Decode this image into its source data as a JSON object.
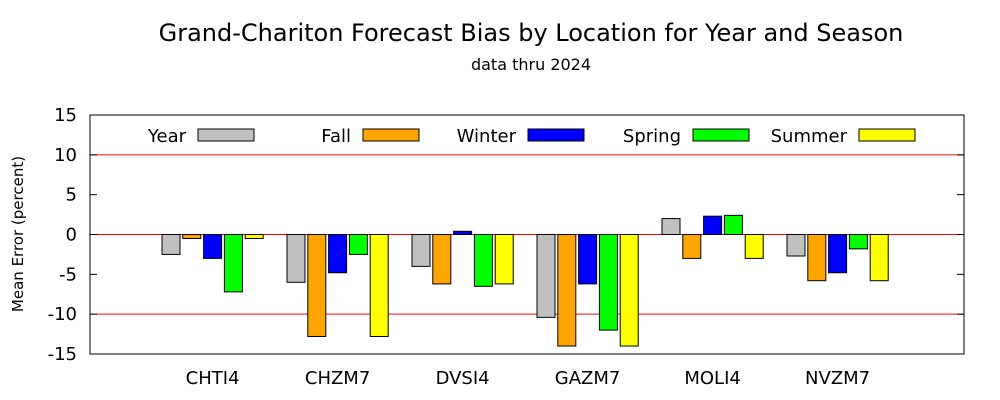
{
  "chart_data": {
    "type": "bar",
    "title": "Grand-Chariton Forecast Bias by Location for Year and Season",
    "subtitle": "data thru 2024",
    "xlabel": "",
    "ylabel": "Mean Error (percent)",
    "ylim": [
      -15,
      15
    ],
    "yticks": [
      15,
      10,
      5,
      0,
      -5,
      -10,
      -15
    ],
    "gridlines": [
      10,
      0,
      -10
    ],
    "grid_color": "#ff0000",
    "legend_position": "top",
    "categories": [
      "CHTI4",
      "CHZM7",
      "DVSI4",
      "GAZM7",
      "MOLI4",
      "NVZM7"
    ],
    "series": [
      {
        "name": "Year",
        "color": "#c0c0c0",
        "values": [
          -2.5,
          -6.0,
          -4.0,
          -10.4,
          2.0,
          -2.7
        ]
      },
      {
        "name": "Fall",
        "color": "#ffa500",
        "values": [
          -0.5,
          -12.8,
          -6.2,
          -14.0,
          -3.0,
          -5.8
        ]
      },
      {
        "name": "Winter",
        "color": "#0000ff",
        "values": [
          -3.0,
          -4.8,
          0.4,
          -6.2,
          2.3,
          -4.8
        ]
      },
      {
        "name": "Spring",
        "color": "#00ff00",
        "values": [
          -7.2,
          -2.5,
          -6.5,
          -12.0,
          2.4,
          -1.8
        ]
      },
      {
        "name": "Summer",
        "color": "#ffff00",
        "values": [
          -0.5,
          -12.8,
          -6.2,
          -14.0,
          -3.0,
          -5.8
        ]
      }
    ]
  }
}
